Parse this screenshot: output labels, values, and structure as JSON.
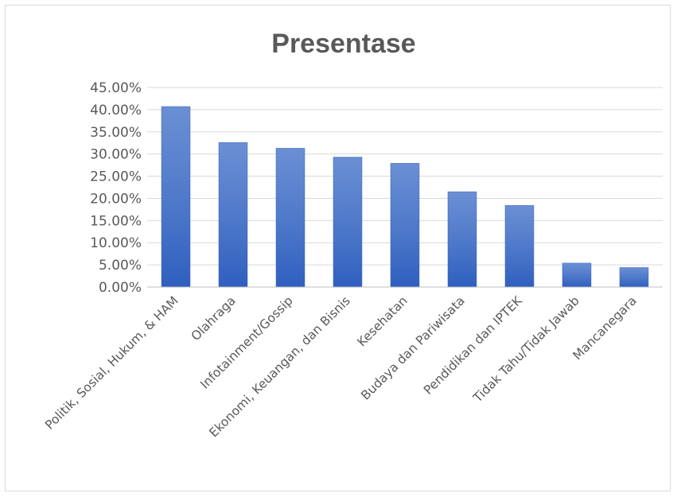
{
  "chart_data": {
    "type": "bar",
    "title": "Presentase",
    "xlabel": "",
    "ylabel": "",
    "ylim": [
      0,
      0.45
    ],
    "ytick_step": 0.05,
    "yticks": [
      "0.00%",
      "5.00%",
      "10.00%",
      "15.00%",
      "20.00%",
      "25.00%",
      "30.00%",
      "35.00%",
      "40.00%",
      "45.00%"
    ],
    "grid": true,
    "legend": "none",
    "bar_color": "#4472c4",
    "categories": [
      "Politik, Sosial, Hukum, & HAM",
      "Olahraga",
      "Infotainment/Gossip",
      "Ekonomi, Keuangan, dan Bisnis",
      "Kesehatan",
      "Budaya dan Pariwisata",
      "Pendidikan dan IPTEK",
      "Tidak Tahu/Tidak Jawab",
      "Mancanegara"
    ],
    "values": [
      0.407,
      0.326,
      0.313,
      0.293,
      0.279,
      0.215,
      0.184,
      0.054,
      0.044
    ]
  }
}
